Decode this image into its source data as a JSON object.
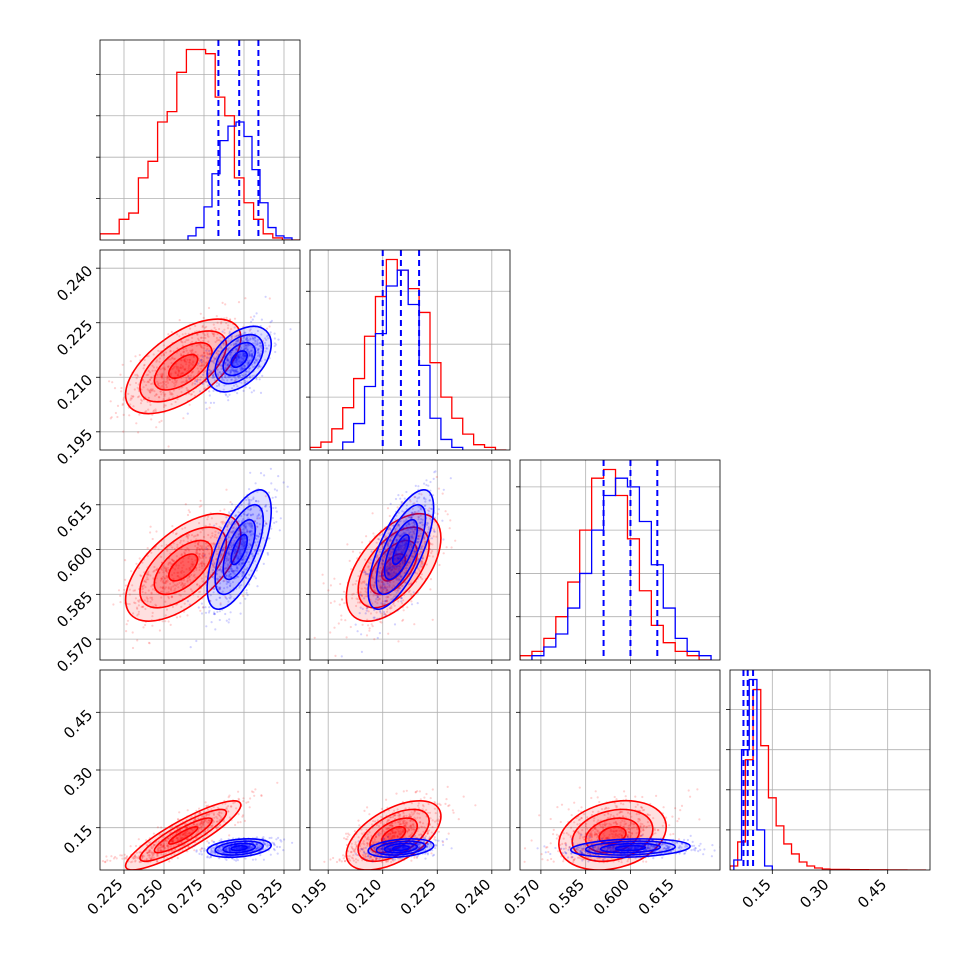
{
  "chart_data": {
    "type": "corner",
    "parameters": [
      {
        "range": [
          0.21,
          0.335
        ],
        "ticks": [
          "0.225",
          "0.250",
          "0.275",
          "0.300",
          "0.325"
        ]
      },
      {
        "range": [
          0.19,
          0.245
        ],
        "ticks": [
          "0.195",
          "0.210",
          "0.225",
          "0.240"
        ]
      },
      {
        "range": [
          0.563,
          0.63
        ],
        "ticks": [
          "0.570",
          "0.585",
          "0.600",
          "0.615"
        ]
      },
      {
        "range": [
          0.04,
          0.56
        ],
        "ticks": [
          "0.15",
          "0.30",
          "0.45"
        ]
      }
    ],
    "series": [
      {
        "color": "#ff0000",
        "means": [
          0.262,
          0.213,
          0.594,
          0.13
        ],
        "sds": [
          0.018,
          0.0065,
          0.009,
          0.045
        ],
        "corr": {
          "0-1": 0.6,
          "0-2": 0.6,
          "0-3": 0.88,
          "1-2": 0.55,
          "1-3": 0.55,
          "2-3": 0.25
        },
        "hist": [
          {
            "edges": [
              0.21,
              0.216,
              0.222,
              0.228,
              0.234,
              0.24,
              0.246,
              0.252,
              0.258,
              0.264,
              0.27,
              0.276,
              0.282,
              0.288,
              0.294,
              0.3,
              0.306,
              0.312,
              0.318,
              0.324,
              0.33,
              0.335
            ],
            "counts": [
              3,
              3,
              10,
              13,
              30,
              38,
              57,
              62,
              81,
              92,
              92,
              90,
              69,
              60,
              30,
              18,
              10,
              3,
              1,
              0,
              0
            ]
          },
          {
            "edges": [
              0.19,
              0.193,
              0.196,
              0.199,
              0.202,
              0.205,
              0.208,
              0.211,
              0.214,
              0.217,
              0.22,
              0.223,
              0.226,
              0.229,
              0.232,
              0.235,
              0.238,
              0.241,
              0.244
            ],
            "counts": [
              1,
              3,
              8,
              16,
              27,
              43,
              58,
              72,
              68,
              61,
              52,
              33,
              20,
              12,
              6,
              2,
              1,
              0
            ]
          },
          {
            "edges": [
              0.563,
              0.567,
              0.571,
              0.575,
              0.579,
              0.583,
              0.587,
              0.591,
              0.595,
              0.599,
              0.603,
              0.607,
              0.611,
              0.615,
              0.619,
              0.623,
              0.627
            ],
            "counts": [
              1,
              2,
              5,
              10,
              18,
              30,
              42,
              44,
              38,
              28,
              16,
              8,
              4,
              2,
              1,
              0
            ]
          },
          {
            "edges": [
              0.04,
              0.06,
              0.08,
              0.1,
              0.12,
              0.14,
              0.16,
              0.18,
              0.2,
              0.22,
              0.24,
              0.26,
              0.28,
              0.3,
              0.35,
              0.4,
              0.45,
              0.5,
              0.55
            ],
            "counts": [
              2,
              14,
              55,
              90,
              62,
              36,
              22,
              13,
              8,
              4,
              2,
              1,
              0.5,
              0.3,
              0.2,
              0.1,
              0.05,
              0
            ]
          }
        ]
      },
      {
        "color": "#0000ff",
        "means": [
          0.297,
          0.215,
          0.6,
          0.097
        ],
        "sds": [
          0.01,
          0.0045,
          0.01,
          0.012
        ],
        "corr": {
          "0-1": 0.45,
          "0-2": 0.65,
          "0-3": 0.3,
          "1-2": 0.7,
          "1-3": 0.3,
          "2-3": 0.2
        },
        "hist": [
          {
            "edges": [
              0.265,
              0.27,
              0.275,
              0.28,
              0.285,
              0.29,
              0.295,
              0.3,
              0.305,
              0.31,
              0.315,
              0.32,
              0.325,
              0.33
            ],
            "counts": [
              2,
              6,
              16,
              32,
              48,
              55,
              57,
              50,
              34,
              18,
              6,
              2,
              1
            ]
          },
          {
            "edges": [
              0.199,
              0.202,
              0.205,
              0.208,
              0.211,
              0.214,
              0.217,
              0.22,
              0.223,
              0.226,
              0.229,
              0.232
            ],
            "counts": [
              3,
              10,
              24,
              44,
              62,
              68,
              55,
              32,
              12,
              4,
              1
            ]
          },
          {
            "edges": [
              0.567,
              0.571,
              0.575,
              0.579,
              0.583,
              0.587,
              0.591,
              0.595,
              0.599,
              0.603,
              0.607,
              0.611,
              0.615,
              0.619,
              0.623,
              0.627
            ],
            "counts": [
              1,
              3,
              6,
              12,
              20,
              30,
              38,
              42,
              40,
              32,
              22,
              12,
              5,
              2,
              1
            ]
          },
          {
            "edges": [
              0.05,
              0.07,
              0.09,
              0.11,
              0.13,
              0.15
            ],
            "counts": [
              5,
              60,
              95,
              20,
              2
            ]
          }
        ],
        "quantiles": [
          [
            0.284,
            0.297,
            0.309
          ],
          [
            0.21,
            0.215,
            0.22
          ],
          [
            0.591,
            0.6,
            0.609
          ],
          [
            0.075,
            0.086,
            0.1
          ]
        ]
      }
    ],
    "hist_ymax": [
      92,
      72,
      44,
      95
    ]
  }
}
